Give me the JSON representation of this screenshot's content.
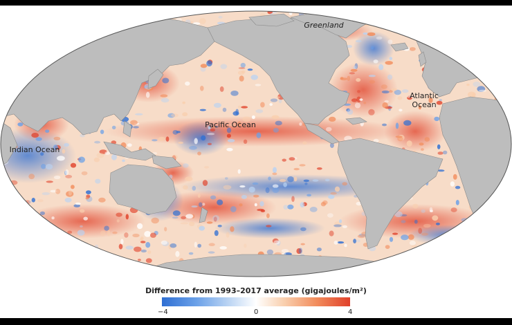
{
  "map": {
    "labels": {
      "greenland": "Greenland",
      "pacific": "Pacific Ocean",
      "atlantic_line1": "Atlantic",
      "atlantic_line2": "Ocean",
      "indian": "Indian Ocean"
    },
    "colors": {
      "land": "#bdbdbd",
      "ocean_base": "#f7dcc8",
      "warm": "#e0412a",
      "cool": "#2f6fd3"
    }
  },
  "legend": {
    "title": "Difference from 1993–2017 average (gigajoules/m²)",
    "min_label": "−4",
    "mid_label": "0",
    "max_label": "4",
    "range": [
      -4,
      4
    ],
    "colors": [
      "#2f6fd3",
      "#ffffff",
      "#e0412a"
    ]
  }
}
